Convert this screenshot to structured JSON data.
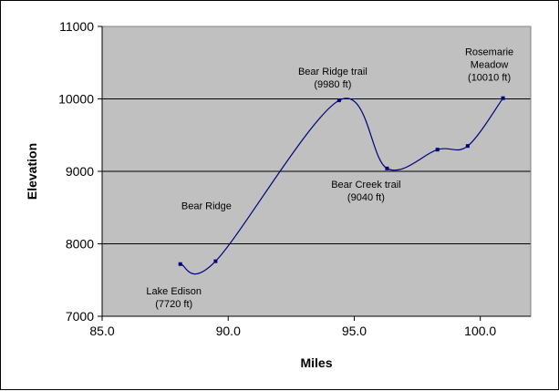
{
  "chart_data": {
    "type": "line",
    "title": "",
    "xlabel": "Miles",
    "ylabel": "Elevation",
    "xlim": [
      85.0,
      102.0
    ],
    "ylim": [
      7000,
      11000
    ],
    "x_ticks": [
      85.0,
      90.0,
      95.0,
      100.0
    ],
    "x_tick_labels": [
      "85.0",
      "90.0",
      "95.0",
      "100.0"
    ],
    "y_ticks": [
      7000,
      8000,
      9000,
      10000,
      11000
    ],
    "y_tick_labels": [
      "7000",
      "8000",
      "9000",
      "10000",
      "11000"
    ],
    "grid": "horizontal",
    "legend": "none",
    "series": [
      {
        "x": [
          88.1,
          89.5,
          94.4,
          96.3,
          98.3,
          99.5,
          100.9
        ],
        "y": [
          7720,
          7760,
          9980,
          9040,
          9300,
          9350,
          10010
        ]
      }
    ],
    "annotations": [
      {
        "lines": [
          "Lake Edison",
          "(7720 ft)"
        ],
        "x": 88.1,
        "y": 7720
      },
      {
        "lines": [
          "Bear Ridge"
        ],
        "x": 89.5,
        "y": 7760
      },
      {
        "lines": [
          "Bear Ridge trail",
          "(9980 ft)"
        ],
        "x": 94.4,
        "y": 9980
      },
      {
        "lines": [
          "Bear Creek trail",
          "(9040 ft)"
        ],
        "x": 96.3,
        "y": 9040
      },
      {
        "lines": [
          "Rosemarie",
          "Meadow",
          "(10010 ft)"
        ],
        "x": 100.9,
        "y": 10010
      }
    ],
    "colors": {
      "plot_background": "#c0c0c0",
      "line": "#000080",
      "gridline": "#000000",
      "page_background": "#ffffff"
    }
  }
}
